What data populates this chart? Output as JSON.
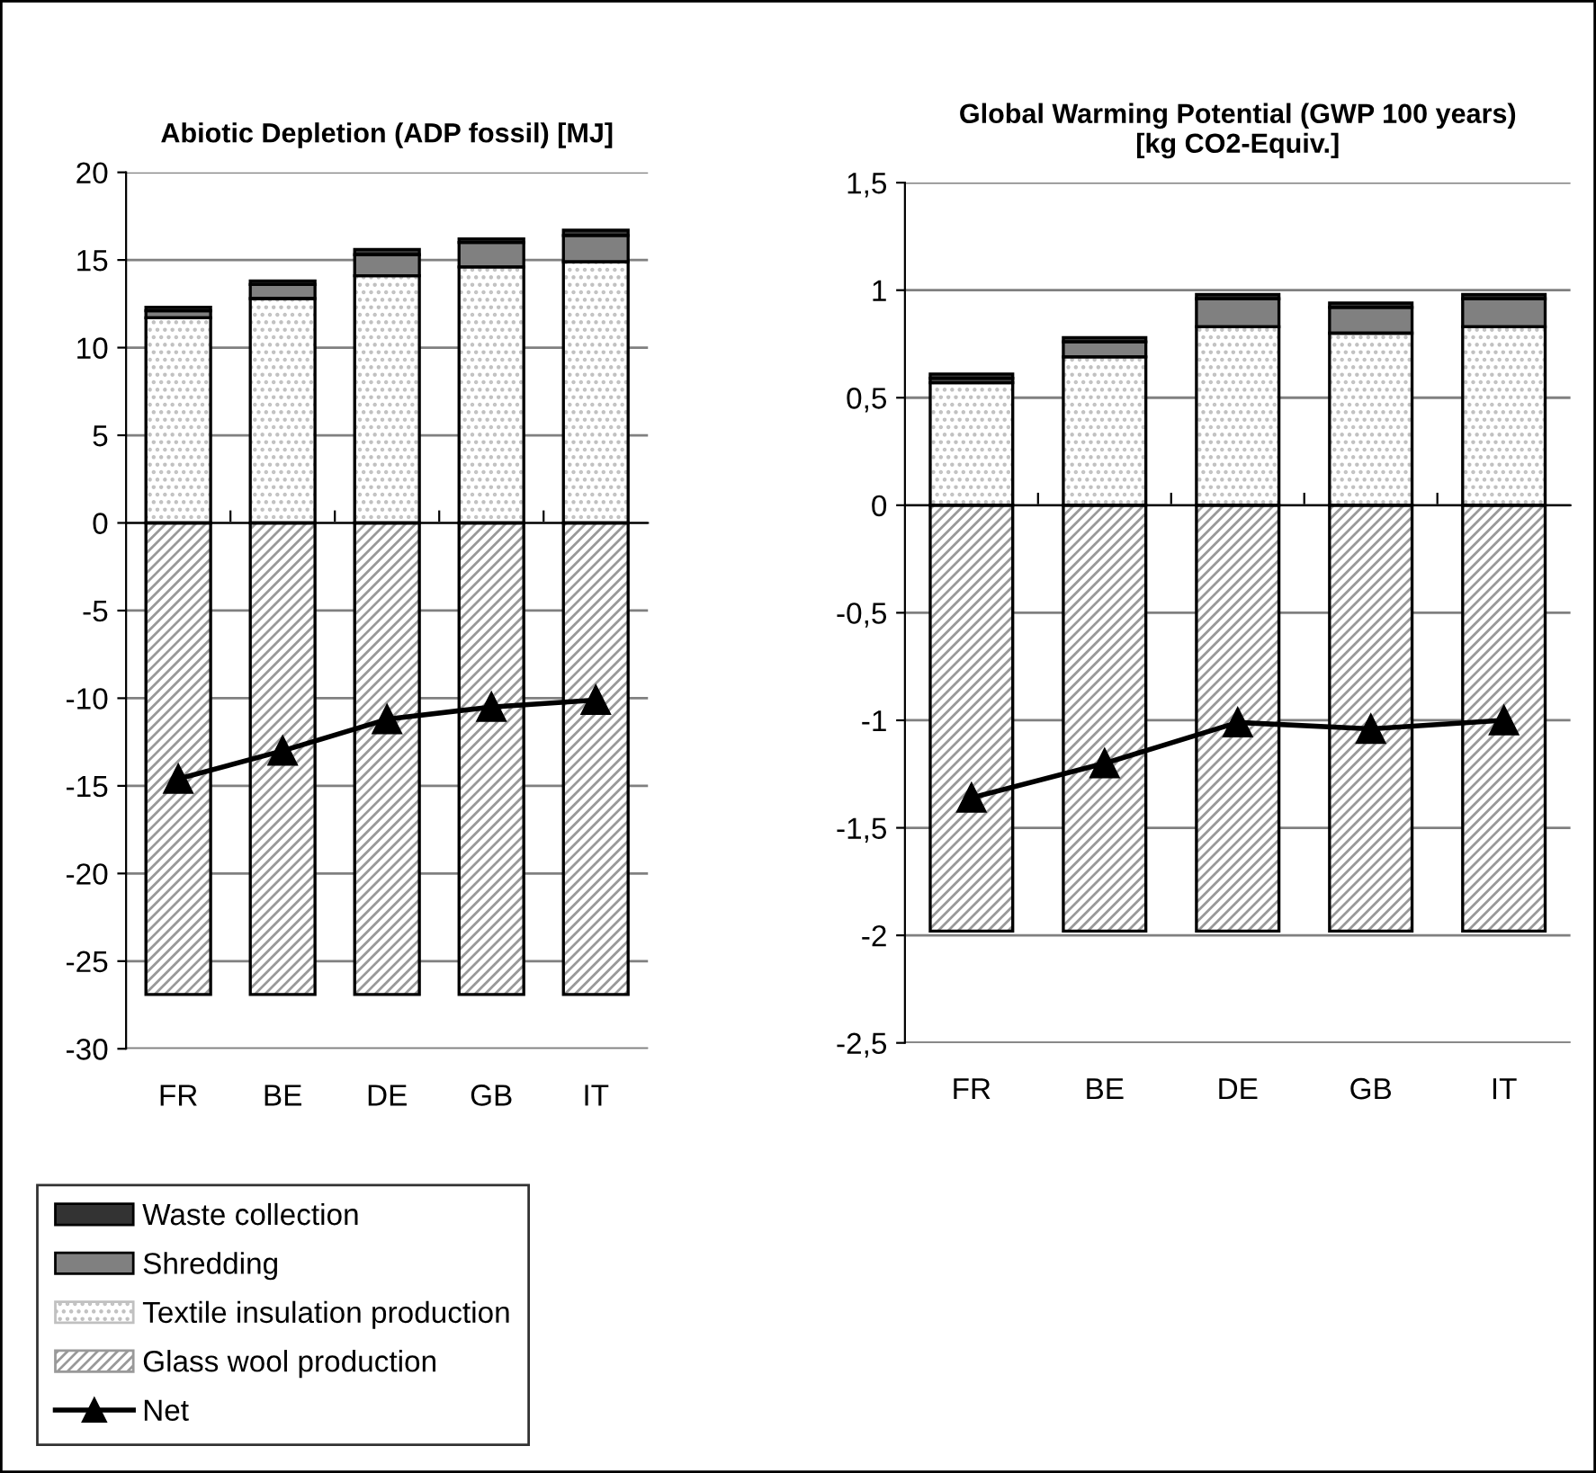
{
  "chart_data": [
    {
      "type": "bar",
      "stacked": true,
      "title": "Abiotic Depletion (ADP fossil) [MJ]",
      "categories": [
        "FR",
        "BE",
        "DE",
        "GB",
        "IT"
      ],
      "series": [
        {
          "name": "Glass wool production",
          "color": "#999999",
          "values": [
            -26.9,
            -26.9,
            -26.9,
            -26.9,
            -26.9
          ]
        },
        {
          "name": "Textile insulation production",
          "color": "#c0c0c0",
          "values": [
            11.7,
            12.8,
            14.1,
            14.6,
            14.9
          ]
        },
        {
          "name": "Shredding",
          "color": "#808080",
          "values": [
            0.4,
            0.8,
            1.2,
            1.4,
            1.5
          ]
        },
        {
          "name": "Waste collection",
          "color": "#333333",
          "values": [
            0.2,
            0.2,
            0.3,
            0.2,
            0.3
          ]
        },
        {
          "name": "Net",
          "type": "line",
          "color": "#000000",
          "marker": "triangle",
          "values": [
            -14.6,
            -13.0,
            -11.2,
            -10.5,
            -10.1
          ]
        }
      ],
      "ylim": [
        -30,
        20
      ],
      "yticks": [
        -30,
        -25,
        -20,
        -15,
        -10,
        -5,
        0,
        5,
        10,
        15,
        20
      ],
      "grid": "y",
      "legend": "bottom left"
    },
    {
      "type": "bar",
      "stacked": true,
      "title": "Global Warming Potential (GWP 100 years)\n[kg CO2-Equiv.]",
      "categories": [
        "FR",
        "BE",
        "DE",
        "GB",
        "IT"
      ],
      "series": [
        {
          "color": "#999999",
          "values": [
            -1.98,
            -1.98,
            -1.98,
            -1.98,
            -1.98
          ]
        },
        {
          "color": "#c0c0c0",
          "values": [
            0.57,
            0.69,
            0.83,
            0.8,
            0.83
          ]
        },
        {
          "color": "#808080",
          "values": [
            0.02,
            0.07,
            0.13,
            0.12,
            0.13
          ]
        },
        {
          "color": "#333333",
          "values": [
            0.02,
            0.02,
            0.02,
            0.02,
            0.02
          ]
        },
        {
          "type": "line",
          "color": "#000000",
          "marker": "triangle",
          "values": [
            -1.36,
            -1.2,
            -1.01,
            -1.04,
            -1.0
          ]
        }
      ],
      "ylim": [
        -2.5,
        1.5
      ],
      "yticks": [
        {
          "value": -2.5,
          "label": "-2,5"
        },
        -2,
        {
          "value": -1.5,
          "label": "-1,5"
        },
        -1,
        {
          "value": -0.5,
          "label": "-0,5"
        },
        0,
        {
          "value": 0.5,
          "label": "0,5"
        },
        1,
        {
          "value": 1.5,
          "label": "1,5"
        }
      ],
      "grid": "y"
    }
  ]
}
